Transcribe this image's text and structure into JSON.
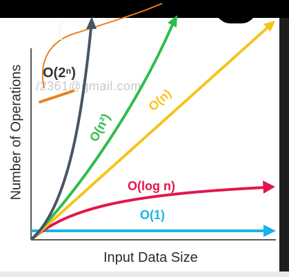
{
  "axes": {
    "x_label": "Input Data Size",
    "y_label": "Number of Operations"
  },
  "watermark_text": "/2361@gmail.com",
  "curves": [
    {
      "id": "exp",
      "label": "O(2ⁿ)",
      "color": "#4a5563"
    },
    {
      "id": "quad",
      "label": "O(n²)",
      "color": "#2ebd4a"
    },
    {
      "id": "linear",
      "label": "O(n)",
      "color": "#f5c41a"
    },
    {
      "id": "log",
      "label": "O(log n)",
      "color": "#e3154d"
    },
    {
      "id": "const",
      "label": "O(1)",
      "color": "#1bb3e8"
    }
  ],
  "annotation_color": "#e8821c"
}
